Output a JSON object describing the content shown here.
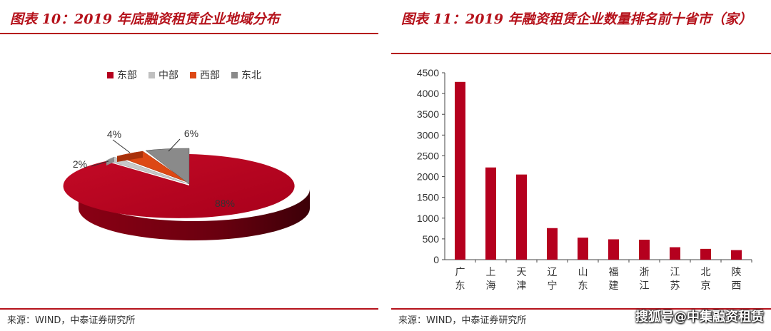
{
  "left": {
    "title": "图表 10：2019 年底融资租赁企业地域分布",
    "source": "来源：WIND，中泰证券研究所"
  },
  "right": {
    "title": "图表 11：2019 年融资租赁企业数量排名前十省市（家）",
    "source": "来源：WIND，中泰证券研究所"
  },
  "watermark": "搜狐号@中集融资租赁",
  "colors": {
    "accent": "#b5121b",
    "east": "#b5001e",
    "central": "#c0c0c0",
    "west": "#dd4814",
    "northeast": "#8a8a8a"
  },
  "chart_data": [
    {
      "type": "pie",
      "legend": [
        "东部",
        "中部",
        "西部",
        "东北"
      ],
      "legend_position": "top",
      "values": [
        88,
        2,
        4,
        6
      ],
      "labels": [
        "88%",
        "2%",
        "4%",
        "6%"
      ]
    },
    {
      "type": "bar",
      "categories": [
        "广东",
        "上海",
        "天津",
        "辽宁",
        "山东",
        "福建",
        "浙江",
        "江苏",
        "北京",
        "陕西"
      ],
      "values": [
        4280,
        2220,
        2050,
        760,
        530,
        490,
        480,
        300,
        260,
        230
      ],
      "ylim": [
        0,
        4500
      ],
      "yticks": [
        "0",
        "500",
        "1000",
        "1500",
        "2000",
        "2500",
        "3000",
        "3500",
        "4000",
        "4500"
      ],
      "grid": false
    }
  ]
}
